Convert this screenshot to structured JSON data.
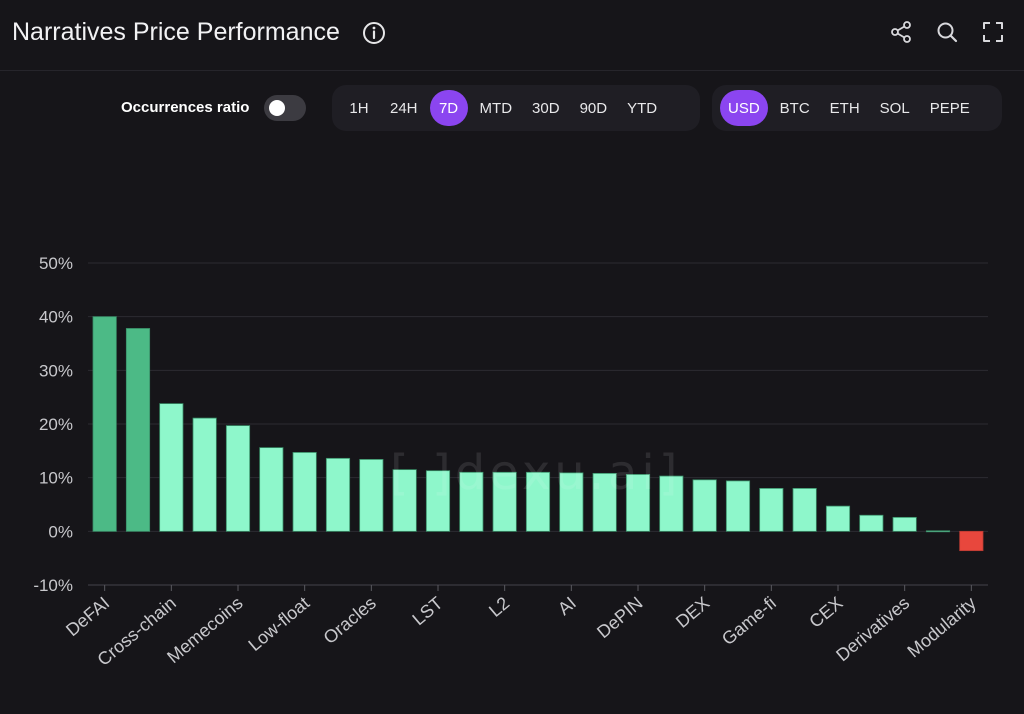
{
  "header": {
    "title": "Narratives Price Performance",
    "icons": [
      "info-icon",
      "share-icon",
      "search-icon",
      "expand-icon"
    ]
  },
  "controls": {
    "toggle_label": "Occurrences ratio",
    "toggle_on": false,
    "periods": [
      "1H",
      "24H",
      "7D",
      "MTD",
      "30D",
      "90D",
      "YTD"
    ],
    "active_period": "7D",
    "currencies": [
      "USD",
      "BTC",
      "ETH",
      "SOL",
      "PEPE"
    ],
    "active_currency": "USD"
  },
  "colors": {
    "accent": "#8b45f0",
    "bar_top": "#4cba86",
    "bar": "#8ef7cb",
    "bar_negative": "#e8473d",
    "background": "#161519"
  },
  "watermark": "[ ]dexu.ai]",
  "chart_data": {
    "type": "bar",
    "title": "Narratives Price Performance",
    "xlabel": "",
    "ylabel": "",
    "ylim": [
      -10,
      50
    ],
    "yticks": [
      "50%",
      "40%",
      "30%",
      "20%",
      "10%",
      "0%",
      "-10%"
    ],
    "ytick_values": [
      50,
      40,
      30,
      20,
      10,
      0,
      -10
    ],
    "grid": true,
    "categories": [
      "DeFAI",
      "",
      "Cross-chain",
      "",
      "Memecoins",
      "",
      "Low-float",
      "",
      "Oracles",
      "",
      "LST",
      "",
      "L2",
      "",
      "AI",
      "",
      "DePIN",
      "",
      "DEX",
      "",
      "Game-fi",
      "",
      "CEX",
      "",
      "Derivatives",
      "",
      "Modularity"
    ],
    "values": [
      40.0,
      37.8,
      23.8,
      21.1,
      19.7,
      15.6,
      14.7,
      13.6,
      13.4,
      11.5,
      11.3,
      11.0,
      11.0,
      11.0,
      10.9,
      10.8,
      10.6,
      10.3,
      9.6,
      9.4,
      8.0,
      8.0,
      4.7,
      3.0,
      2.6,
      0.1,
      -3.6
    ],
    "x_tick_labels": [
      "DeFAI",
      "Cross-chain",
      "Memecoins",
      "Low-float",
      "Oracles",
      "LST",
      "L2",
      "AI",
      "DePIN",
      "DEX",
      "Game-fi",
      "CEX",
      "Derivatives",
      "Modularity"
    ]
  }
}
